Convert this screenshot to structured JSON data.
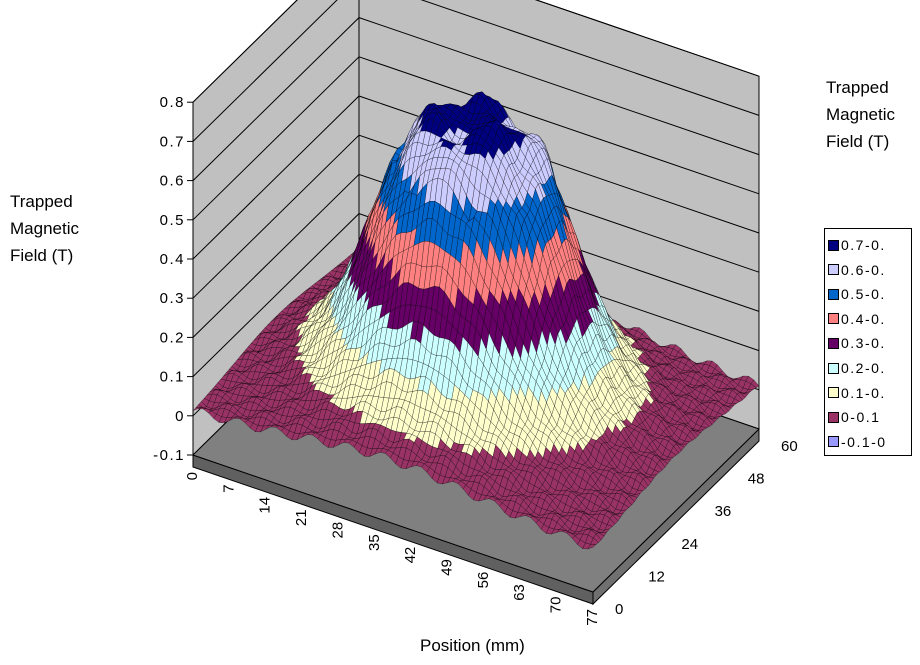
{
  "chart_data": {
    "type": "surface",
    "title": "",
    "zlabel": [
      "Trapped",
      "Magnetic",
      "Field (T)"
    ],
    "xlabel": "Position (mm)",
    "z_ticks": [
      "-0.1",
      "0",
      "0.1",
      "0.2",
      "0.3",
      "0.4",
      "0.5",
      "0.6",
      "0.7",
      "0.8"
    ],
    "zlim": [
      -0.1,
      0.8
    ],
    "x_ticks": [
      "0",
      "7",
      "14",
      "21",
      "28",
      "35",
      "42",
      "49",
      "56",
      "63",
      "70",
      "77"
    ],
    "xlim": [
      0,
      77
    ],
    "y_ticks": [
      "0",
      "12",
      "24",
      "36",
      "48",
      "60"
    ],
    "ylim": [
      0,
      60
    ],
    "legend_title": [
      "Trapped",
      "Magnetic",
      "Field (T)"
    ],
    "legend": [
      {
        "label": "0.7-0.",
        "color": "#000080"
      },
      {
        "label": "0.6-0.",
        "color": "#ccccff"
      },
      {
        "label": "0.5-0.",
        "color": "#0066cc"
      },
      {
        "label": "0.4-0.",
        "color": "#ff8080"
      },
      {
        "label": "0.3-0.",
        "color": "#660066"
      },
      {
        "label": "0.2-0.",
        "color": "#ccffff"
      },
      {
        "label": "0.1-0.",
        "color": "#ffffcc"
      },
      {
        "label": "0-0.1",
        "color": "#993366"
      },
      {
        "label": "-0.1-0",
        "color": "#9999ff"
      }
    ],
    "surface": {
      "shape": "flat-topped peak",
      "peak_value": 0.72,
      "baseline_value": 0,
      "peak_center_x": 38,
      "peak_center_y": 30
    },
    "wall_color": "#c0c0c0",
    "floor_color": "#808080",
    "grid": true,
    "legend_placement": "right"
  }
}
